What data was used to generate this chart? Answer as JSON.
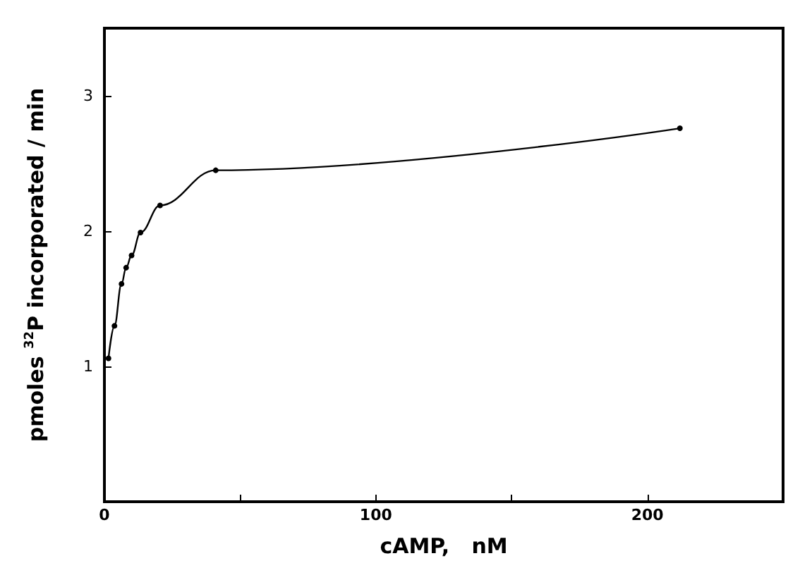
{
  "chart_data": {
    "type": "line",
    "xlabel": "cAMP,   nM",
    "ylabel": "pmoles $^{32}$P incorporated / min",
    "x": [
      1.5,
      3.7,
      6.3,
      8,
      10,
      13.3,
      20.5,
      41,
      212
    ],
    "values": [
      1.06,
      1.3,
      1.61,
      1.73,
      1.82,
      1.99,
      2.19,
      2.45,
      2.76
    ],
    "color": "#000000",
    "marker": "circle",
    "line_style": "solid",
    "grid": false,
    "xlim": [
      0,
      250
    ],
    "xticks": [
      0,
      {
        "value": 50,
        "label": null
      },
      100,
      {
        "value": 150,
        "label": null
      },
      200
    ],
    "ylim": [
      0,
      3.5
    ],
    "yticks": [
      {
        "value": 0,
        "label": null
      },
      1,
      2,
      3
    ]
  }
}
